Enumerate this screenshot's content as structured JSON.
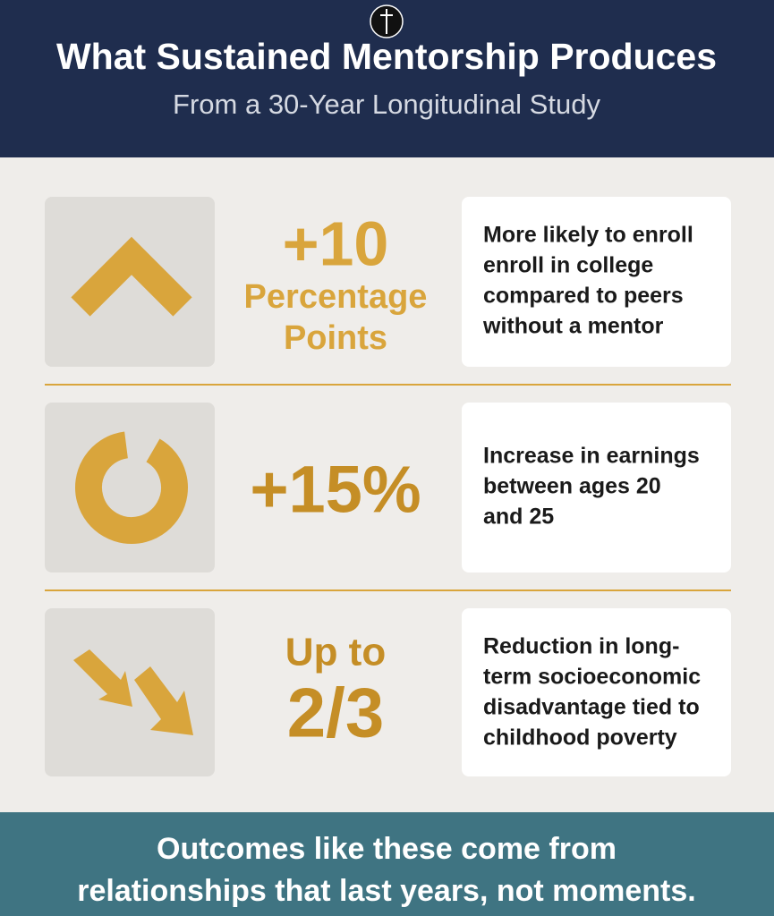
{
  "header": {
    "title": "What Sustained Mentorship Produces",
    "subtitle": "From a 30-Year Longitudinal Study"
  },
  "stats": [
    {
      "figure": [
        "+10",
        "Percentage",
        "Points"
      ],
      "description": [
        "More likely to enroll",
        "enroll in college",
        "compared to peers",
        "without a mentor"
      ]
    },
    {
      "figure": [
        "+15%"
      ],
      "description": [
        "Increase in earnings",
        "between ages 20",
        "and 25"
      ]
    },
    {
      "figure": [
        "Up to",
        "2/3"
      ],
      "description": [
        "Reduction in long-",
        "term socioeconomic",
        "disadvantage tied to",
        "childhood poverty"
      ]
    }
  ],
  "footer": [
    "Outcomes like these come from",
    "relationships that last years, not moments."
  ]
}
